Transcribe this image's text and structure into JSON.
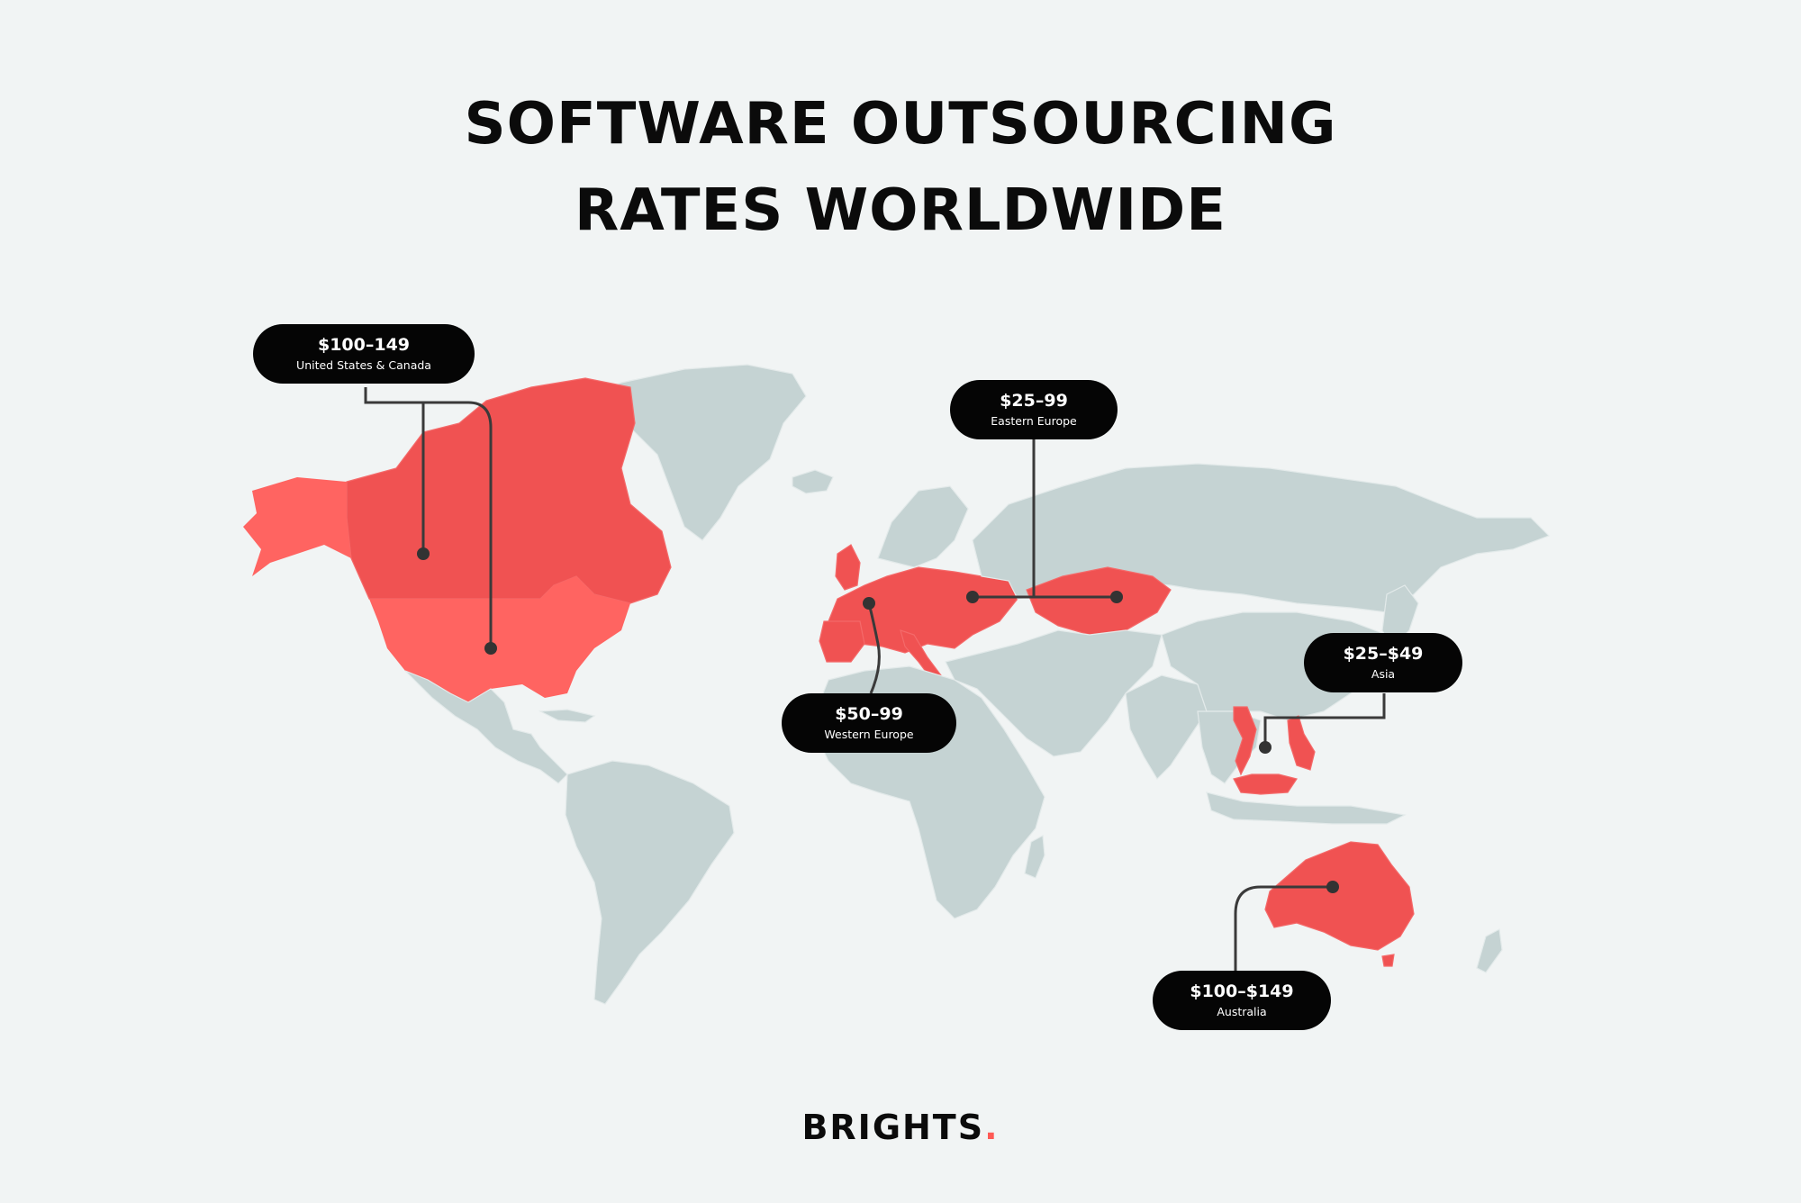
{
  "title": {
    "line1": "SOFTWARE OUTSOURCING",
    "line2": "RATES WORLDWIDE"
  },
  "callouts": [
    {
      "price": "$100–149",
      "region": "United States & Canada"
    },
    {
      "price": "$25–99",
      "region": "Eastern Europe"
    },
    {
      "price": "$50–99",
      "region": "Western Europe"
    },
    {
      "price": "$25–$49",
      "region": "Asia"
    },
    {
      "price": "$100–$149",
      "region": "Australia"
    }
  ],
  "logo": {
    "text": "BRIGHTS",
    "dot": "."
  },
  "colors": {
    "background": "#f1f4f4",
    "land": "#c5d3d3",
    "highlight": "#f05252",
    "pill": "#050505"
  }
}
